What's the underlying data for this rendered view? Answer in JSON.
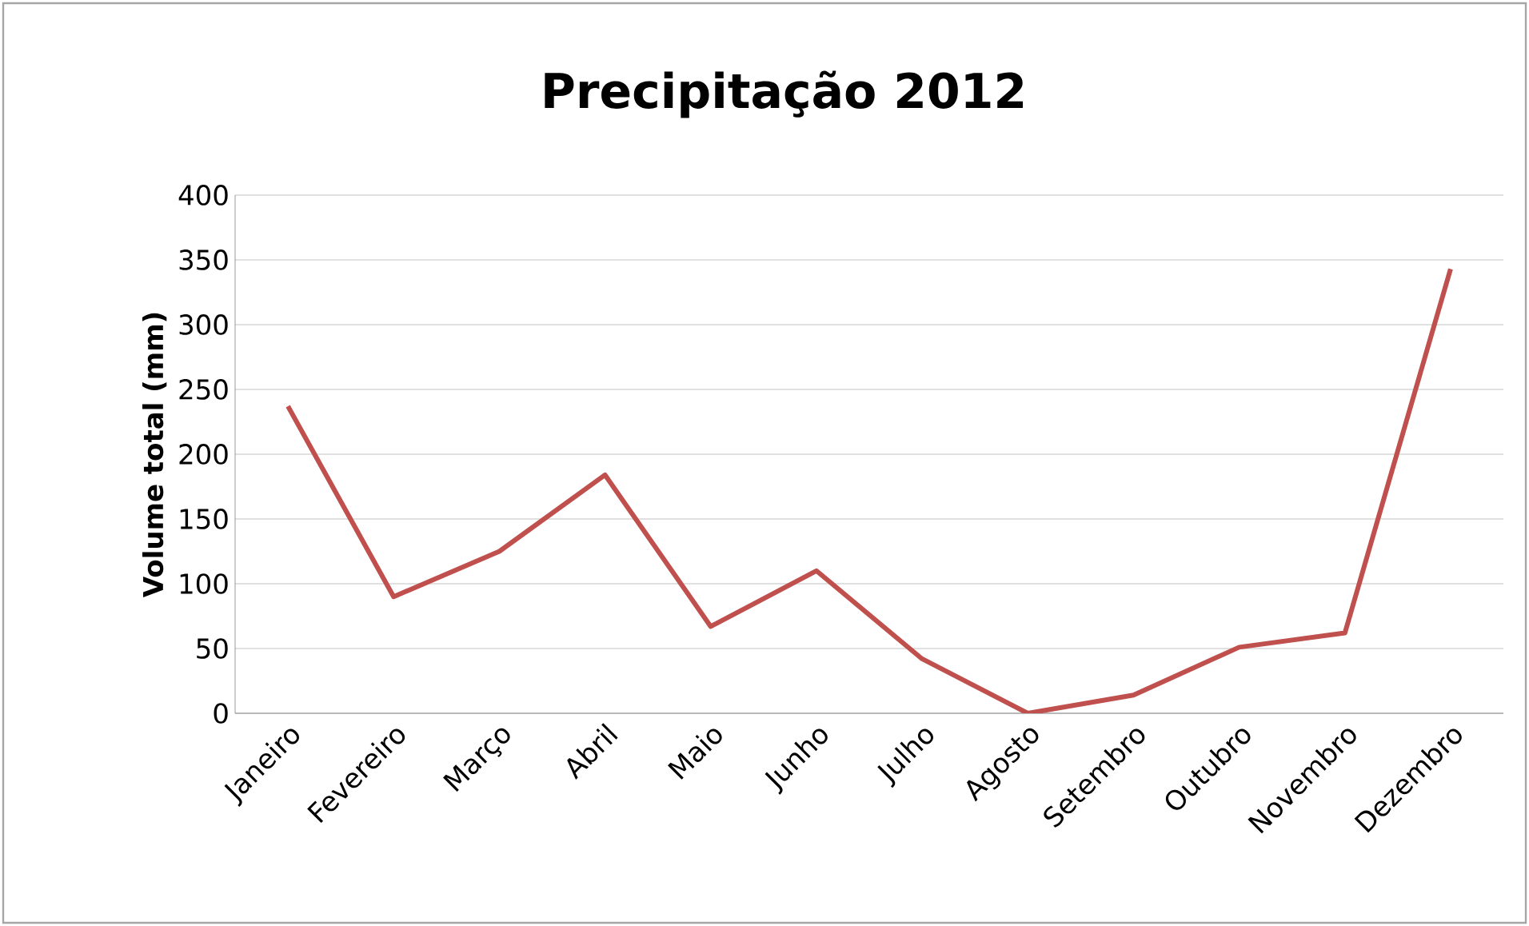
{
  "chart_data": {
    "type": "line",
    "title": "Precipitação 2012",
    "ylabel": "Volume total (mm)",
    "categories": [
      "Janeiro",
      "Fevereiro",
      "Março",
      "Abril",
      "Maio",
      "Junho",
      "Julho",
      "Agosto",
      "Setembro",
      "Outubro",
      "Novembro",
      "Dezembro"
    ],
    "series": [
      {
        "color": "#c0504d",
        "values": [
          237,
          90,
          125,
          184,
          67,
          110,
          42,
          0,
          14,
          51,
          62,
          343
        ]
      }
    ],
    "ylim": [
      0,
      400
    ],
    "yticks": [
      0,
      50,
      100,
      150,
      200,
      250,
      300,
      350,
      400
    ],
    "grid": "y",
    "marker": "none",
    "line_style": "solid"
  }
}
